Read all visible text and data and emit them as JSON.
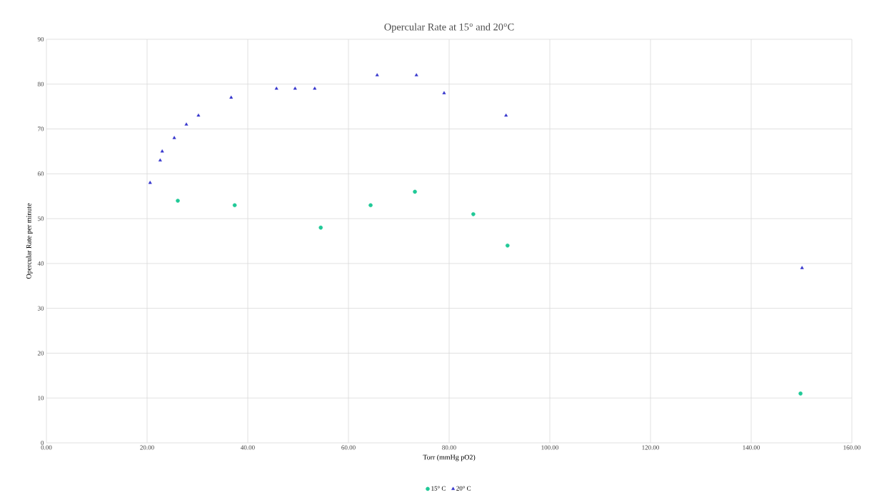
{
  "chart_data": {
    "type": "scatter",
    "title": "Opercular Rate at 15° and 20°C",
    "xlabel": "Torr (mmHg pO2)",
    "ylabel": "Opercular Rate per minute",
    "xlim": [
      0,
      160
    ],
    "ylim": [
      0,
      90
    ],
    "xticks": [
      {
        "value": 0,
        "label": "0.00"
      },
      {
        "value": 20,
        "label": "20.00"
      },
      {
        "value": 40,
        "label": "40.00"
      },
      {
        "value": 60,
        "label": "60.00"
      },
      {
        "value": 80,
        "label": "80.00"
      },
      {
        "value": 100,
        "label": "100.00"
      },
      {
        "value": 120,
        "label": "120.00"
      },
      {
        "value": 140,
        "label": "140.00"
      },
      {
        "value": 160,
        "label": "160.00"
      }
    ],
    "yticks": [
      0,
      10,
      20,
      30,
      40,
      50,
      60,
      70,
      80,
      90
    ],
    "grid": true,
    "legend": "bottom",
    "series": [
      {
        "name": "15° C",
        "color": "#20c997",
        "marker": "circle",
        "x": [
          26.1,
          37.4,
          54.5,
          64.4,
          73.2,
          84.8,
          91.6,
          149.8
        ],
        "values": [
          54,
          53,
          48,
          53,
          56,
          51,
          44,
          11
        ]
      },
      {
        "name": "20° C",
        "color": "#3333cc",
        "marker": "triangle",
        "x": [
          20.6,
          22.6,
          23.0,
          25.4,
          27.8,
          30.2,
          36.7,
          45.7,
          49.4,
          53.3,
          65.7,
          73.5,
          79.0,
          91.3,
          150.1
        ],
        "values": [
          58,
          63,
          65,
          68,
          71,
          73,
          77,
          79,
          79,
          79,
          82,
          82,
          78,
          73,
          39
        ]
      }
    ]
  }
}
